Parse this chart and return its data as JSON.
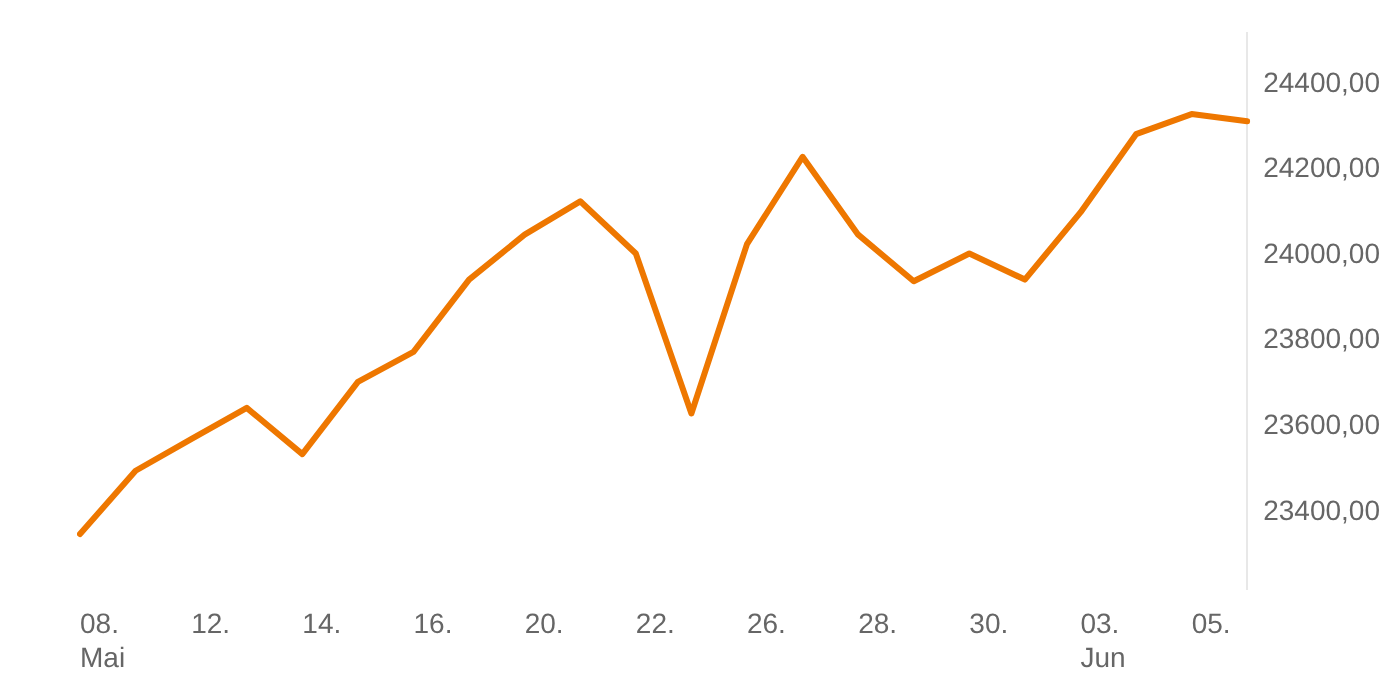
{
  "chart_data": {
    "type": "line",
    "categories": [
      "08.\nMai",
      null,
      "12.",
      null,
      "14.",
      null,
      "16.",
      null,
      "20.",
      null,
      "22.",
      null,
      "26.",
      null,
      "28.",
      null,
      "30.",
      null,
      "03.\nJun",
      null,
      "05.",
      null
    ],
    "series": [
      {
        "color": "#ee7700",
        "values": [
          23348,
          23496,
          23570,
          23643,
          23535,
          23704,
          23774,
          23943,
          24048,
          24126,
          24004,
          23630,
          24026,
          24230,
          24048,
          23939,
          24004,
          23943,
          24100,
          24283,
          24330,
          24313
        ]
      }
    ],
    "yticks": [
      {
        "value": 23400,
        "label": "23400,00"
      },
      {
        "value": 23600,
        "label": "23600,00"
      },
      {
        "value": 23800,
        "label": "23800,00"
      },
      {
        "value": 24000,
        "label": "24000,00"
      },
      {
        "value": 24200,
        "label": "24200,00"
      },
      {
        "value": 24400,
        "label": "24400,00"
      }
    ],
    "ylim": [
      23220,
      24520
    ],
    "grid": false,
    "legend": false,
    "marker": "none",
    "line_style": "solid"
  }
}
